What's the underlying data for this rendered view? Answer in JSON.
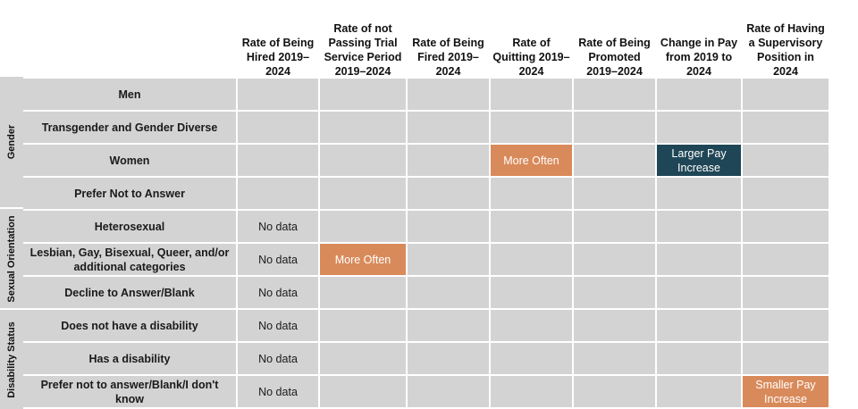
{
  "columns": [
    "Rate of Being Hired 2019–2024",
    "Rate of not Passing Trial Service Period 2019–2024",
    "Rate of Being Fired 2019–2024",
    "Rate of Quitting 2019–2024",
    "Rate of Being Promoted 2019–2024",
    "Change in Pay from 2019 to 2024",
    "Rate of Having a Supervisory Position in 2024"
  ],
  "groups": [
    {
      "label": "Gender",
      "rows": [
        {
          "label": "Men",
          "cells": [
            "",
            "",
            "",
            "",
            "",
            "",
            ""
          ]
        },
        {
          "label": "Transgender and Gender Diverse",
          "cells": [
            "",
            "",
            "",
            "",
            "",
            "",
            ""
          ]
        },
        {
          "label": "Women",
          "cells": [
            "",
            "",
            "",
            "More Often",
            "",
            "Larger Pay Increase",
            ""
          ]
        },
        {
          "label": "Prefer Not to Answer",
          "cells": [
            "",
            "",
            "",
            "",
            "",
            "",
            ""
          ]
        }
      ]
    },
    {
      "label": "Sexual Orientation",
      "rows": [
        {
          "label": "Heterosexual",
          "cells": [
            "No data",
            "",
            "",
            "",
            "",
            "",
            ""
          ]
        },
        {
          "label": "Lesbian, Gay, Bisexual, Queer, and/or additional categories",
          "cells": [
            "No data",
            "More Often",
            "",
            "",
            "",
            "",
            ""
          ]
        },
        {
          "label": "Decline to Answer/Blank",
          "cells": [
            "No data",
            "",
            "",
            "",
            "",
            "",
            ""
          ]
        }
      ]
    },
    {
      "label": "Disability Status",
      "rows": [
        {
          "label": "Does not have a disability",
          "cells": [
            "No data",
            "",
            "",
            "",
            "",
            "",
            ""
          ]
        },
        {
          "label": "Has a disability",
          "cells": [
            "No data",
            "",
            "",
            "",
            "",
            "",
            ""
          ]
        },
        {
          "label": "Prefer not to answer/Blank/I don't know",
          "cells": [
            "No data",
            "",
            "",
            "",
            "",
            "",
            "Smaller Pay Increase"
          ]
        }
      ]
    }
  ],
  "highlight_colors": {
    "More Often": "#d98a5a",
    "Larger Pay Increase": "#1f4656",
    "Smaller Pay Increase": "#d98a5a",
    "neutral": "#d3d3d3"
  }
}
